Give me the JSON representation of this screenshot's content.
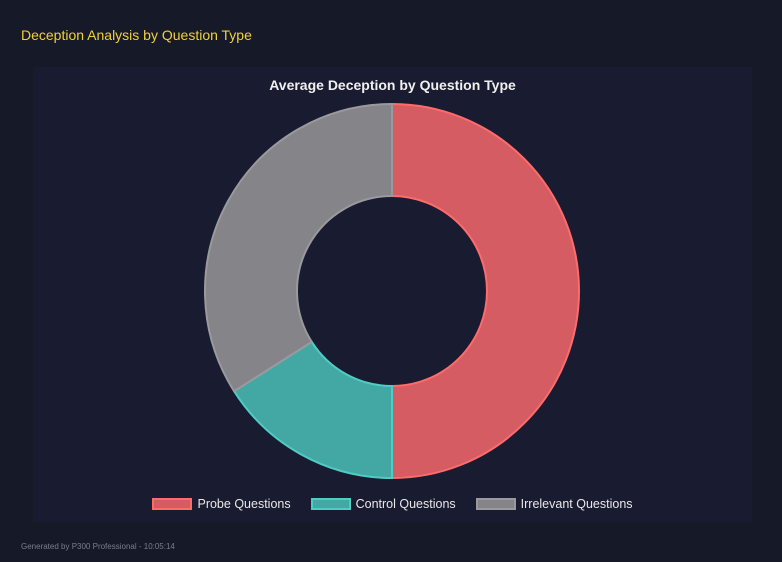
{
  "header": {
    "title": "Deception Analysis by Question Type"
  },
  "footer": {
    "text": "Generated by P300 Professional - 10:05:14"
  },
  "chart_data": {
    "type": "pie",
    "variant": "doughnut",
    "title": "Average Deception by Question Type",
    "categories": [
      "Probe Questions",
      "Control Questions",
      "Irrelevant Questions"
    ],
    "values": [
      50,
      16,
      34
    ],
    "fill_colors": [
      "#d45c62",
      "#43a8a4",
      "#858489"
    ],
    "border_colors": [
      "#ff6b6b",
      "#4ecdc4",
      "#9a9a9e"
    ],
    "legend": "bottom"
  }
}
